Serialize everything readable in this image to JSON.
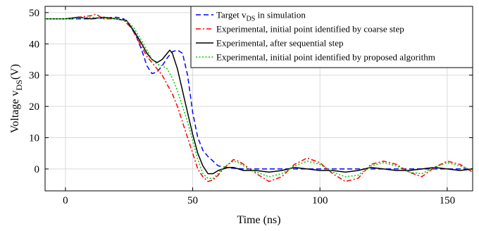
{
  "chart_data": {
    "type": "line",
    "xlabel": "Time (ns)",
    "ylabel": "Voltage v",
    "ylabel_sub": "DS",
    "ylabel_unit": "(V)",
    "xlim": [
      -8,
      160
    ],
    "ylim": [
      -7,
      52
    ],
    "xticks": [
      0,
      50,
      100,
      150
    ],
    "yticks": [
      0,
      10,
      20,
      30,
      40,
      50
    ],
    "grid": true,
    "legend_position": "top-right",
    "series": [
      {
        "name_main": "Target v",
        "name_sub": "DS",
        "name_rest": " in simulation",
        "color": "#0000ff",
        "style": "dashed",
        "x": [
          -8,
          0,
          10,
          20,
          23,
          26,
          28,
          30,
          32,
          34,
          36,
          38,
          40,
          42,
          44,
          46,
          48,
          50,
          52,
          54,
          56,
          58,
          60,
          65,
          70,
          160
        ],
        "y": [
          48,
          48,
          48,
          48.5,
          48,
          45,
          42,
          38,
          33,
          30.5,
          31,
          33,
          35.5,
          37.5,
          38,
          37,
          30,
          18,
          10,
          6,
          4,
          2.5,
          1,
          0.3,
          0,
          0
        ]
      },
      {
        "name_main": "Experimental, initial point identified by coarse step",
        "name_sub": "",
        "name_rest": "",
        "color": "#ff0000",
        "style": "dashdot",
        "x": [
          -8,
          0,
          5,
          10,
          12,
          15,
          20,
          23,
          26,
          28,
          30,
          32,
          34,
          36,
          38,
          40,
          42,
          44,
          46,
          48,
          50,
          52,
          54,
          56,
          58,
          60,
          62,
          64,
          66,
          68,
          70,
          75,
          80,
          85,
          90,
          95,
          100,
          105,
          110,
          115,
          120,
          125,
          130,
          135,
          140,
          145,
          150,
          155,
          160
        ],
        "y": [
          48,
          48,
          48.5,
          49,
          49.5,
          48,
          48,
          47.5,
          45,
          42,
          39,
          36,
          34,
          32,
          30,
          27,
          24,
          20,
          15,
          10,
          5,
          0,
          -2.5,
          -4,
          -3.5,
          -2,
          0,
          1.5,
          3,
          2.5,
          1.5,
          -1.5,
          -4,
          -2.5,
          1.5,
          3.5,
          2,
          -1.5,
          -4,
          -3,
          1.5,
          2.5,
          1.5,
          -1,
          -2.5,
          0.5,
          2.5,
          1.5,
          -1
        ]
      },
      {
        "name_main": "Experimental, after sequential step",
        "name_sub": "",
        "name_rest": "",
        "color": "#000000",
        "style": "solid",
        "x": [
          -8,
          0,
          5,
          10,
          15,
          20,
          24,
          27,
          30,
          32,
          34,
          36,
          38,
          40,
          41,
          42,
          44,
          46,
          48,
          50,
          52,
          54,
          56,
          58,
          60,
          62,
          64,
          66,
          68,
          70,
          75,
          80,
          85,
          90,
          95,
          100,
          105,
          110,
          115,
          120,
          125,
          130,
          135,
          140,
          145,
          150,
          155,
          160
        ],
        "y": [
          48,
          48,
          48.5,
          48,
          48.5,
          48,
          47.5,
          44,
          40,
          37,
          35,
          34,
          35,
          37,
          38,
          37,
          32,
          25,
          18,
          11,
          5,
          1,
          -1.5,
          -1.5,
          -0.5,
          0,
          0.5,
          0.5,
          0,
          -0.5,
          -0.5,
          -1,
          -0.5,
          0.5,
          0,
          -0.5,
          -0.5,
          -1,
          -0.5,
          0.5,
          0,
          -0.5,
          -0.5,
          0,
          0.5,
          0,
          -0.5,
          0
        ]
      },
      {
        "name_main": "Experimental, initial point identified by proposed algorithm",
        "name_sub": "",
        "name_rest": "",
        "color": "#00cc00",
        "style": "dotted",
        "x": [
          -8,
          0,
          10,
          20,
          24,
          27,
          30,
          32,
          34,
          36,
          38,
          40,
          42,
          44,
          46,
          48,
          50,
          52,
          54,
          56,
          58,
          60,
          62,
          64,
          66,
          68,
          70,
          75,
          80,
          85,
          90,
          95,
          100,
          105,
          110,
          115,
          120,
          125,
          130,
          135,
          140,
          145,
          150,
          155,
          160
        ],
        "y": [
          48,
          48,
          48.5,
          48,
          47.5,
          45,
          41,
          38,
          35,
          33.5,
          33,
          32,
          29,
          25,
          20,
          15,
          9,
          3,
          -1.5,
          -3,
          -3,
          -1.5,
          0.5,
          1.5,
          2.5,
          2,
          1,
          -1,
          -2.5,
          -1.5,
          1,
          2.5,
          1.5,
          -1,
          -2.5,
          -2,
          1,
          2,
          1,
          -1,
          -1.5,
          0.5,
          2,
          1,
          -0.5
        ]
      }
    ]
  }
}
